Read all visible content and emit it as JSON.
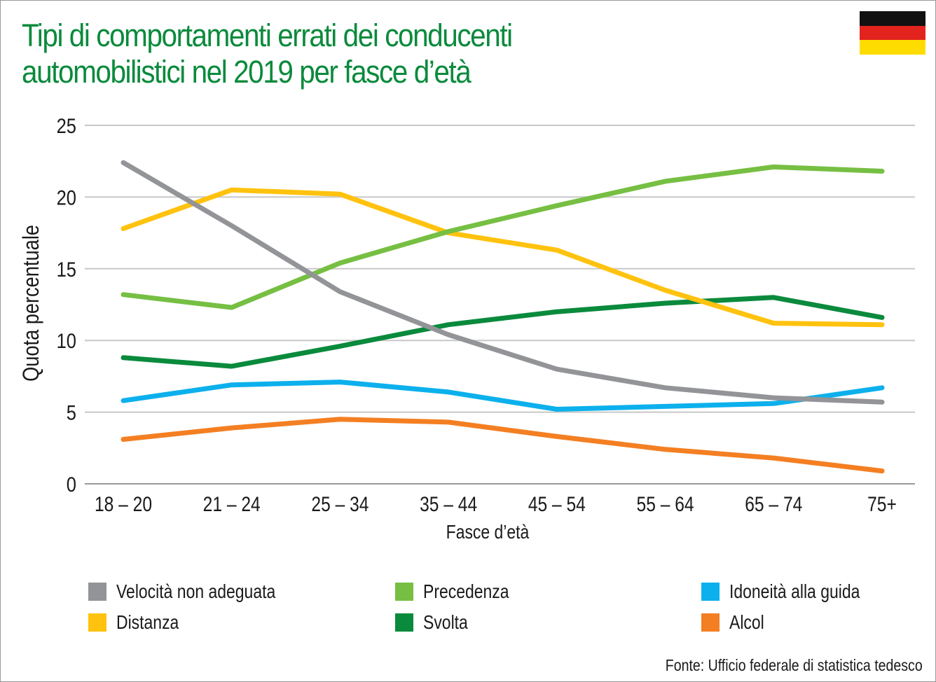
{
  "flag": {
    "colors": [
      "#111111",
      "#e3231d",
      "#ffdc00"
    ]
  },
  "chart_data": {
    "type": "line",
    "title": "Tipi di comportamenti errati dei conducenti automobilistici nel 2019 per fasce d’età",
    "title_lines": [
      "Tipi di comportamenti errati dei conducenti",
      "automobilistici nel 2019 per fasce d’età"
    ],
    "xlabel": "Fasce d’età",
    "ylabel": "Quota percentuale",
    "categories": [
      "18 – 20",
      "21 – 24",
      "25 – 34",
      "35 – 44",
      "45 – 54",
      "55 – 64",
      "65 – 74",
      "75+"
    ],
    "ylim": [
      0,
      25
    ],
    "yticks": [
      0,
      5,
      10,
      15,
      20,
      25
    ],
    "grid": true,
    "legend_position": "bottom",
    "series": [
      {
        "name": "Velocità non adeguata",
        "color": "#939497",
        "values": [
          22.4,
          18.0,
          13.4,
          10.4,
          8.0,
          6.7,
          6.0,
          5.7
        ]
      },
      {
        "name": "Precedenza",
        "color": "#76bf43",
        "values": [
          13.2,
          12.3,
          15.4,
          17.6,
          19.4,
          21.1,
          22.1,
          21.8
        ]
      },
      {
        "name": "Idoneità alla guida",
        "color": "#0cb0ec",
        "values": [
          5.8,
          6.9,
          7.1,
          6.4,
          5.2,
          5.4,
          5.6,
          6.7
        ]
      },
      {
        "name": "Distanza",
        "color": "#ffc20e",
        "values": [
          17.8,
          20.5,
          20.2,
          17.5,
          16.3,
          13.5,
          11.2,
          11.1
        ]
      },
      {
        "name": "Svolta",
        "color": "#0a8a3c",
        "values": [
          8.8,
          8.2,
          9.6,
          11.1,
          12.0,
          12.6,
          13.0,
          11.6
        ]
      },
      {
        "name": "Alcol",
        "color": "#f47f22",
        "values": [
          3.1,
          3.9,
          4.5,
          4.3,
          3.3,
          2.4,
          1.8,
          0.9
        ]
      }
    ],
    "source": "Fonte: Ufficio federale di statistica tedesco"
  }
}
